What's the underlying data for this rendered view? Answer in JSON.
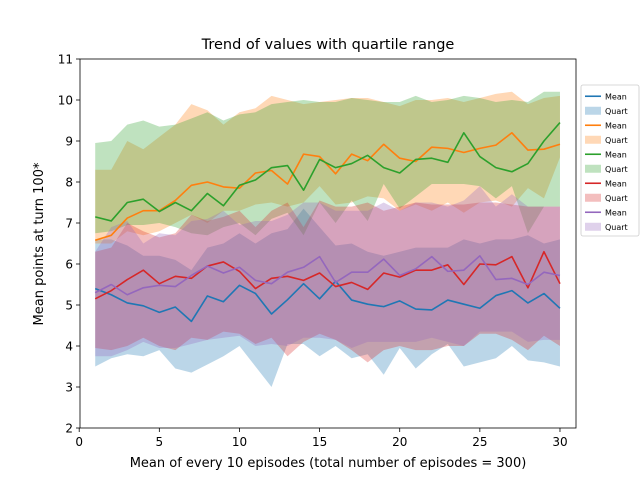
{
  "chart_data": {
    "type": "line",
    "title": "Trend of values with quartile range",
    "xlabel": "Mean of every 10 episodes (total number of episodes = 300)",
    "ylabel": "Mean points at turn 100*",
    "xlim": [
      0.05,
      31.0
    ],
    "ylim": [
      2,
      11
    ],
    "xticks": [
      0,
      5,
      10,
      15,
      20,
      25,
      30
    ],
    "yticks": [
      2,
      3,
      4,
      5,
      6,
      7,
      8,
      9,
      10,
      11
    ],
    "xtick_labels": [
      "0",
      "5",
      "10",
      "15",
      "20",
      "25",
      "30"
    ],
    "ytick_labels": [
      "2",
      "3",
      "4",
      "5",
      "6",
      "7",
      "8",
      "9",
      "10",
      "11"
    ],
    "grid": false,
    "legend_position": "right",
    "x": [
      1,
      2,
      3,
      4,
      5,
      6,
      7,
      8,
      9,
      10,
      11,
      12,
      13,
      14,
      15,
      16,
      17,
      18,
      19,
      20,
      21,
      22,
      23,
      24,
      25,
      26,
      27,
      28,
      29,
      30
    ],
    "series": [
      {
        "name": "Mean",
        "band_name": "Quart",
        "color": "#1f77b4",
        "mean": [
          5.4,
          5.25,
          5.05,
          4.98,
          4.82,
          4.95,
          4.6,
          5.22,
          5.08,
          5.48,
          5.28,
          4.78,
          5.13,
          5.52,
          5.15,
          5.58,
          5.12,
          5.02,
          4.96,
          5.1,
          4.9,
          4.88,
          5.12,
          5.02,
          4.92,
          5.23,
          5.35,
          5.05,
          5.28,
          4.92
        ],
        "lower": [
          3.5,
          3.7,
          3.8,
          3.75,
          3.9,
          3.45,
          3.35,
          3.55,
          3.75,
          4.0,
          3.5,
          3.0,
          4.05,
          4.05,
          3.75,
          4.0,
          3.7,
          3.8,
          3.3,
          3.95,
          3.45,
          3.8,
          4.05,
          3.5,
          3.6,
          3.7,
          4.0,
          3.65,
          3.6,
          3.5
        ],
        "upper": [
          6.6,
          6.6,
          6.45,
          6.2,
          6.2,
          6.1,
          5.85,
          6.4,
          6.5,
          6.75,
          6.5,
          6.75,
          6.85,
          7.35,
          6.9,
          6.45,
          6.5,
          6.3,
          6.2,
          6.3,
          6.4,
          6.4,
          6.4,
          6.6,
          6.5,
          6.6,
          6.6,
          6.7,
          6.5,
          6.6
        ]
      },
      {
        "name": "Mean",
        "band_name": "Quart",
        "color": "#ff7f0e",
        "mean": [
          6.58,
          6.7,
          7.12,
          7.3,
          7.3,
          7.55,
          7.92,
          8.0,
          7.88,
          7.85,
          8.22,
          8.28,
          7.95,
          8.68,
          8.62,
          8.2,
          8.68,
          8.52,
          8.92,
          8.58,
          8.5,
          8.85,
          8.82,
          8.72,
          8.82,
          8.9,
          9.2,
          8.78,
          8.8,
          8.92
        ],
        "lower": [
          6.5,
          6.5,
          6.8,
          6.7,
          6.8,
          7.0,
          7.2,
          7.0,
          7.3,
          7.3,
          7.45,
          7.5,
          7.4,
          7.5,
          7.9,
          7.45,
          7.5,
          7.65,
          7.6,
          7.3,
          7.45,
          7.3,
          7.5,
          7.25,
          7.5,
          7.55,
          7.4,
          7.85,
          7.6,
          8.6
        ],
        "upper": [
          8.3,
          8.3,
          9.0,
          8.8,
          9.1,
          9.4,
          9.9,
          9.75,
          9.4,
          9.7,
          9.8,
          10.1,
          10.0,
          9.9,
          9.95,
          10.0,
          10.05,
          10.05,
          9.95,
          9.85,
          10.0,
          10.0,
          10.05,
          9.95,
          10.05,
          10.15,
          10.2,
          9.9,
          10.05,
          10.1
        ]
      },
      {
        "name": "Mean",
        "band_name": "Quart",
        "color": "#2ca02c",
        "mean": [
          7.15,
          7.05,
          7.5,
          7.58,
          7.28,
          7.5,
          7.3,
          7.72,
          7.42,
          7.92,
          8.05,
          8.35,
          8.4,
          7.8,
          8.55,
          8.35,
          8.45,
          8.65,
          8.35,
          8.22,
          8.55,
          8.58,
          8.48,
          9.2,
          8.62,
          8.35,
          8.25,
          8.45,
          9.0,
          9.45
        ],
        "lower": [
          6.75,
          6.8,
          6.95,
          6.95,
          7.0,
          6.9,
          6.75,
          6.7,
          6.9,
          7.0,
          6.7,
          7.1,
          7.25,
          6.7,
          7.5,
          7.0,
          7.55,
          7.05,
          7.95,
          7.35,
          7.65,
          7.95,
          7.95,
          7.95,
          7.9,
          7.6,
          7.9,
          6.75,
          7.4,
          7.4
        ],
        "upper": [
          8.95,
          9.0,
          9.4,
          9.5,
          9.35,
          9.4,
          9.55,
          9.7,
          9.5,
          9.65,
          9.7,
          9.9,
          9.95,
          10.0,
          9.95,
          9.95,
          10.05,
          10.0,
          9.95,
          9.95,
          10.1,
          9.95,
          10.0,
          10.1,
          10.05,
          9.95,
          10.0,
          9.95,
          10.2,
          10.2
        ]
      },
      {
        "name": "Mean",
        "band_name": "Quart",
        "color": "#d62728",
        "mean": [
          5.15,
          5.35,
          5.62,
          5.85,
          5.52,
          5.7,
          5.65,
          5.95,
          6.05,
          5.82,
          5.4,
          5.65,
          5.7,
          5.6,
          5.78,
          5.45,
          5.55,
          5.38,
          5.78,
          5.68,
          5.85,
          5.85,
          5.98,
          5.5,
          6.0,
          5.98,
          6.18,
          5.42,
          6.3,
          5.52
        ],
        "lower": [
          3.95,
          3.9,
          4.0,
          4.2,
          4.0,
          3.9,
          4.2,
          4.15,
          4.35,
          4.3,
          4.05,
          4.2,
          3.75,
          4.1,
          4.3,
          4.15,
          3.9,
          3.6,
          3.9,
          4.0,
          3.9,
          3.9,
          4.0,
          4.0,
          4.3,
          4.3,
          4.15,
          3.9,
          4.25,
          4.0
        ],
        "upper": [
          6.3,
          6.4,
          7.0,
          6.8,
          6.65,
          6.75,
          7.2,
          7.05,
          7.15,
          7.3,
          6.9,
          7.3,
          7.5,
          6.9,
          7.55,
          7.4,
          7.4,
          7.5,
          7.3,
          7.4,
          7.5,
          7.45,
          7.45,
          7.45,
          7.5,
          7.5,
          7.45,
          7.4,
          7.4,
          7.4
        ]
      },
      {
        "name": "Mean",
        "band_name": "Quart",
        "color": "#9467bd",
        "mean": [
          5.3,
          5.5,
          5.25,
          5.42,
          5.48,
          5.45,
          5.72,
          5.95,
          5.78,
          5.92,
          5.6,
          5.52,
          5.8,
          5.92,
          6.18,
          5.55,
          5.8,
          5.8,
          6.12,
          5.72,
          5.88,
          6.18,
          5.82,
          5.85,
          6.2,
          5.62,
          5.65,
          5.5,
          5.8,
          5.72
        ],
        "lower": [
          3.75,
          3.75,
          3.9,
          4.1,
          3.95,
          3.95,
          4.05,
          4.15,
          4.2,
          4.25,
          4.0,
          4.05,
          4.0,
          4.2,
          4.2,
          4.15,
          3.95,
          4.1,
          4.1,
          4.1,
          4.1,
          4.2,
          4.1,
          4.0,
          4.35,
          4.35,
          4.35,
          4.1,
          4.15,
          4.15
        ],
        "upper": [
          6.3,
          6.9,
          7.05,
          6.5,
          6.75,
          6.7,
          7.05,
          7.1,
          7.3,
          6.95,
          7.05,
          7.05,
          7.2,
          7.5,
          7.5,
          7.3,
          7.3,
          7.3,
          7.5,
          7.3,
          7.5,
          7.5,
          7.4,
          7.55,
          7.9,
          7.4,
          7.7,
          7.4,
          7.4,
          7.4
        ]
      }
    ]
  }
}
